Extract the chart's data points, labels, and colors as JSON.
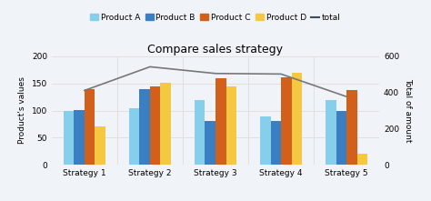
{
  "title": "Compare sales strategy",
  "categories": [
    "Strategy 1",
    "Strategy 2",
    "Strategy 3",
    "Strategy 4",
    "Strategy 5"
  ],
  "products": [
    "Product A",
    "Product B",
    "Product C",
    "Product D"
  ],
  "legend_labels": [
    "Product A",
    "Product B",
    "Product C",
    "Product D",
    "total"
  ],
  "values": {
    "Product A": [
      100,
      105,
      120,
      90,
      120
    ],
    "Product B": [
      101,
      140,
      80,
      80,
      99
    ],
    "Product C": [
      140,
      145,
      160,
      162,
      138
    ],
    "Product D": [
      70,
      152,
      145,
      170,
      20
    ]
  },
  "total": [
    411,
    542,
    505,
    502,
    377
  ],
  "bar_colors": {
    "Product A": "#87CEEB",
    "Product B": "#3A7FC1",
    "Product C": "#D2601A",
    "Product D": "#F5C842"
  },
  "line_color": "#777777",
  "ylabel_left": "Product's values",
  "ylabel_right": "Total of amount",
  "ylim_left": [
    0,
    200
  ],
  "ylim_right": [
    0,
    600
  ],
  "yticks_left": [
    0,
    50,
    100,
    150,
    200
  ],
  "yticks_right": [
    0,
    200,
    400,
    600
  ],
  "background_color": "#f0f4f8",
  "title_fontsize": 9,
  "legend_fontsize": 6.5,
  "axis_fontsize": 6.5,
  "bar_width": 0.16,
  "grid_color": "#e0e0e0",
  "legend_color_total": "#3d4d5c"
}
